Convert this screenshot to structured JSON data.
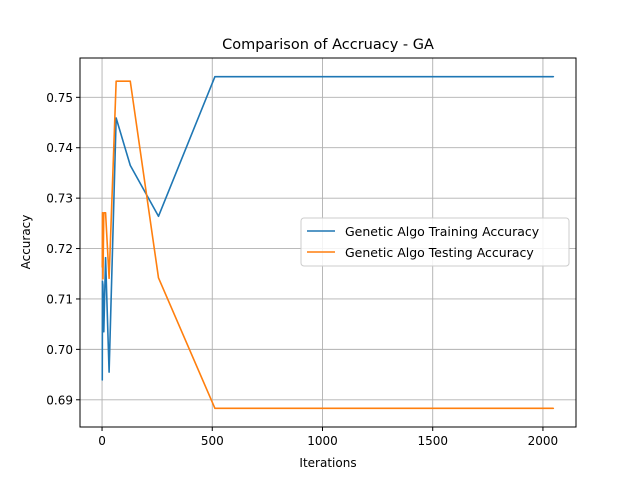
{
  "chart_data": {
    "type": "line",
    "title": "Comparison of Accruacy  - GA",
    "xlabel": "Iterations",
    "ylabel": "Accuracy",
    "xlim": [
      -100,
      2150
    ],
    "ylim": [
      0.6846,
      0.7578
    ],
    "xticks": [
      0,
      500,
      1000,
      1500,
      2000
    ],
    "yticks": [
      0.69,
      0.7,
      0.71,
      0.72,
      0.73,
      0.74,
      0.75
    ],
    "ytick_labels": [
      "0.69",
      "0.70",
      "0.71",
      "0.72",
      "0.73",
      "0.74",
      "0.75"
    ],
    "grid": true,
    "legend_position": "center-right",
    "series": [
      {
        "name": "Genetic Algo Training Accuracy",
        "color": "#1f77b4",
        "x": [
          1,
          2,
          4,
          8,
          16,
          32,
          64,
          128,
          256,
          512,
          1024,
          2048
        ],
        "y": [
          0.6939,
          0.7135,
          0.7128,
          0.7035,
          0.7182,
          0.6955,
          0.7459,
          0.7365,
          0.7264,
          0.7541,
          0.7541,
          0.7541
        ]
      },
      {
        "name": "Genetic Algo Testing Accuracy",
        "color": "#ff7f0e",
        "x": [
          1,
          2,
          4,
          8,
          16,
          32,
          64,
          128,
          256,
          512,
          1024,
          2048
        ],
        "y": [
          0.7163,
          0.7271,
          0.714,
          0.7271,
          0.7271,
          0.7141,
          0.7532,
          0.7532,
          0.7142,
          0.6883,
          0.6883,
          0.6883
        ]
      }
    ]
  }
}
